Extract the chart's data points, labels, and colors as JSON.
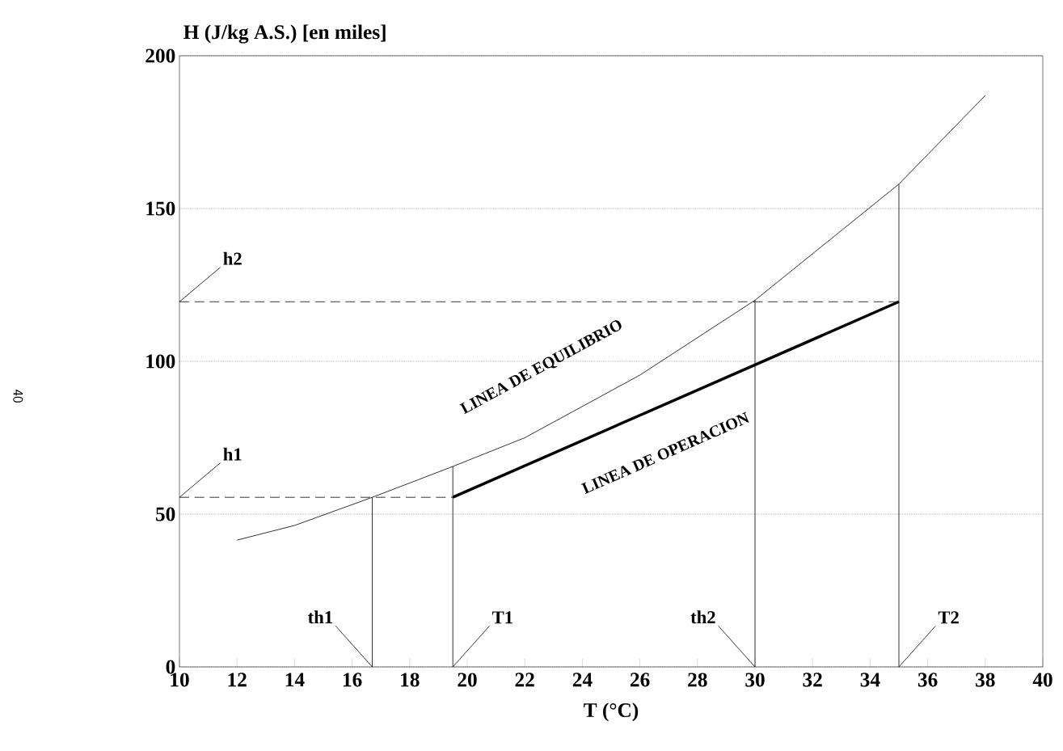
{
  "chart_data": {
    "type": "line",
    "xlabel": "T (°C)",
    "ylabel": "H (J/kg A.S.) [en miles]",
    "xlim": [
      10,
      40
    ],
    "xticks": [
      10,
      12,
      14,
      16,
      18,
      20,
      22,
      24,
      26,
      28,
      30,
      32,
      34,
      36,
      38,
      40
    ],
    "ylim": [
      0,
      200
    ],
    "yticks": [
      0,
      50,
      100,
      150,
      200
    ],
    "grid": "y",
    "series": [
      {
        "color": "#000000",
        "line_style": "solid",
        "x": [
          12,
          14,
          16.7,
          19.5,
          22,
          26,
          30,
          35,
          38
        ],
        "values": [
          41.5,
          46.3,
          55.5,
          65.6,
          75,
          95.5,
          120,
          158,
          187
        ]
      },
      {
        "color": "#000000",
        "line_style": "solid",
        "x": [
          19.5,
          35
        ],
        "values": [
          55.5,
          119.5
        ]
      },
      {
        "color": "#000000",
        "line_style": "dashed",
        "x": [
          10,
          19.5
        ],
        "values": [
          55.5,
          55.5
        ]
      },
      {
        "color": "#000000",
        "line_style": "dashed",
        "x": [
          10,
          35
        ],
        "values": [
          119.5,
          119.5
        ]
      },
      {
        "color": "#000000",
        "line_style": "solid",
        "x": [
          16.7,
          16.7
        ],
        "values": [
          0,
          55.5
        ]
      },
      {
        "color": "#000000",
        "line_style": "solid",
        "x": [
          19.5,
          19.5
        ],
        "values": [
          0,
          65.6
        ]
      },
      {
        "color": "#000000",
        "line_style": "solid",
        "x": [
          30,
          30
        ],
        "values": [
          0,
          120
        ]
      },
      {
        "color": "#000000",
        "line_style": "solid",
        "x": [
          35,
          35
        ],
        "values": [
          0,
          158
        ]
      }
    ],
    "annotations": [
      {
        "text": "h2",
        "x": 10,
        "y": 119.5
      },
      {
        "text": "h1",
        "x": 10,
        "y": 55.5
      },
      {
        "text": "th1",
        "x": 16.7,
        "y": 0
      },
      {
        "text": "T1",
        "x": 19.5,
        "y": 0
      },
      {
        "text": "th2",
        "x": 30,
        "y": 0
      },
      {
        "text": "T2",
        "x": 35,
        "y": 0
      },
      "LINEA DE EQUILIBRIO",
      "LINEA DE OPERACION",
      "40"
    ]
  }
}
